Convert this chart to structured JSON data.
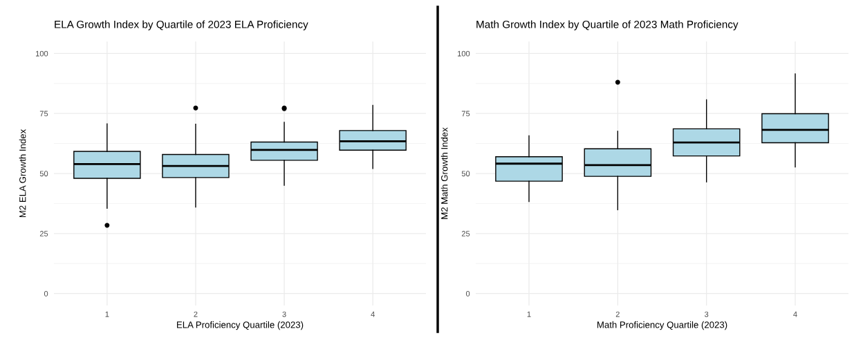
{
  "chart_data": [
    {
      "type": "box",
      "title": "ELA Growth Index by Quartile of 2023 ELA Proficiency",
      "xlabel": "ELA Proficiency Quartile (2023)",
      "ylabel": "M2 ELA Growth Index",
      "categories": [
        "1",
        "2",
        "3",
        "4"
      ],
      "color": "#add8e6",
      "ylim": [
        -5,
        105
      ],
      "yticks": [
        0,
        25,
        50,
        75,
        100
      ],
      "grid": true,
      "boxes": [
        {
          "low": 35.5,
          "q1": 48.0,
          "median": 53.9,
          "q3": 59.2,
          "high": 70.7,
          "outliers": [
            28.4
          ]
        },
        {
          "low": 36.0,
          "q1": 48.3,
          "median": 53.1,
          "q3": 57.9,
          "high": 70.5,
          "outliers": [
            77.3
          ]
        },
        {
          "low": 45.1,
          "q1": 55.5,
          "median": 59.8,
          "q3": 63.1,
          "high": 71.3,
          "outliers": [
            77.3,
            77.0
          ]
        },
        {
          "low": 52.1,
          "q1": 59.7,
          "median": 63.4,
          "q3": 67.9,
          "high": 78.4
        }
      ]
    },
    {
      "type": "box",
      "title": "Math Growth Index by Quartile of 2023 Math Proficiency",
      "xlabel": "Math Proficiency Quartile (2023)",
      "ylabel": "M2 Math Growth Index",
      "categories": [
        "1",
        "2",
        "3",
        "4"
      ],
      "color": "#add8e6",
      "ylim": [
        -5,
        105
      ],
      "yticks": [
        0,
        25,
        50,
        75,
        100
      ],
      "grid": true,
      "boxes": [
        {
          "low": 38.3,
          "q1": 46.8,
          "median": 54.1,
          "q3": 57.0,
          "high": 65.7
        },
        {
          "low": 34.9,
          "q1": 48.8,
          "median": 53.5,
          "q3": 60.3,
          "high": 67.6,
          "outliers": [
            88.0
          ]
        },
        {
          "low": 46.5,
          "q1": 57.3,
          "median": 62.9,
          "q3": 68.6,
          "high": 80.7
        },
        {
          "low": 52.7,
          "q1": 62.8,
          "median": 68.2,
          "q3": 74.9,
          "high": 91.5
        }
      ]
    }
  ]
}
